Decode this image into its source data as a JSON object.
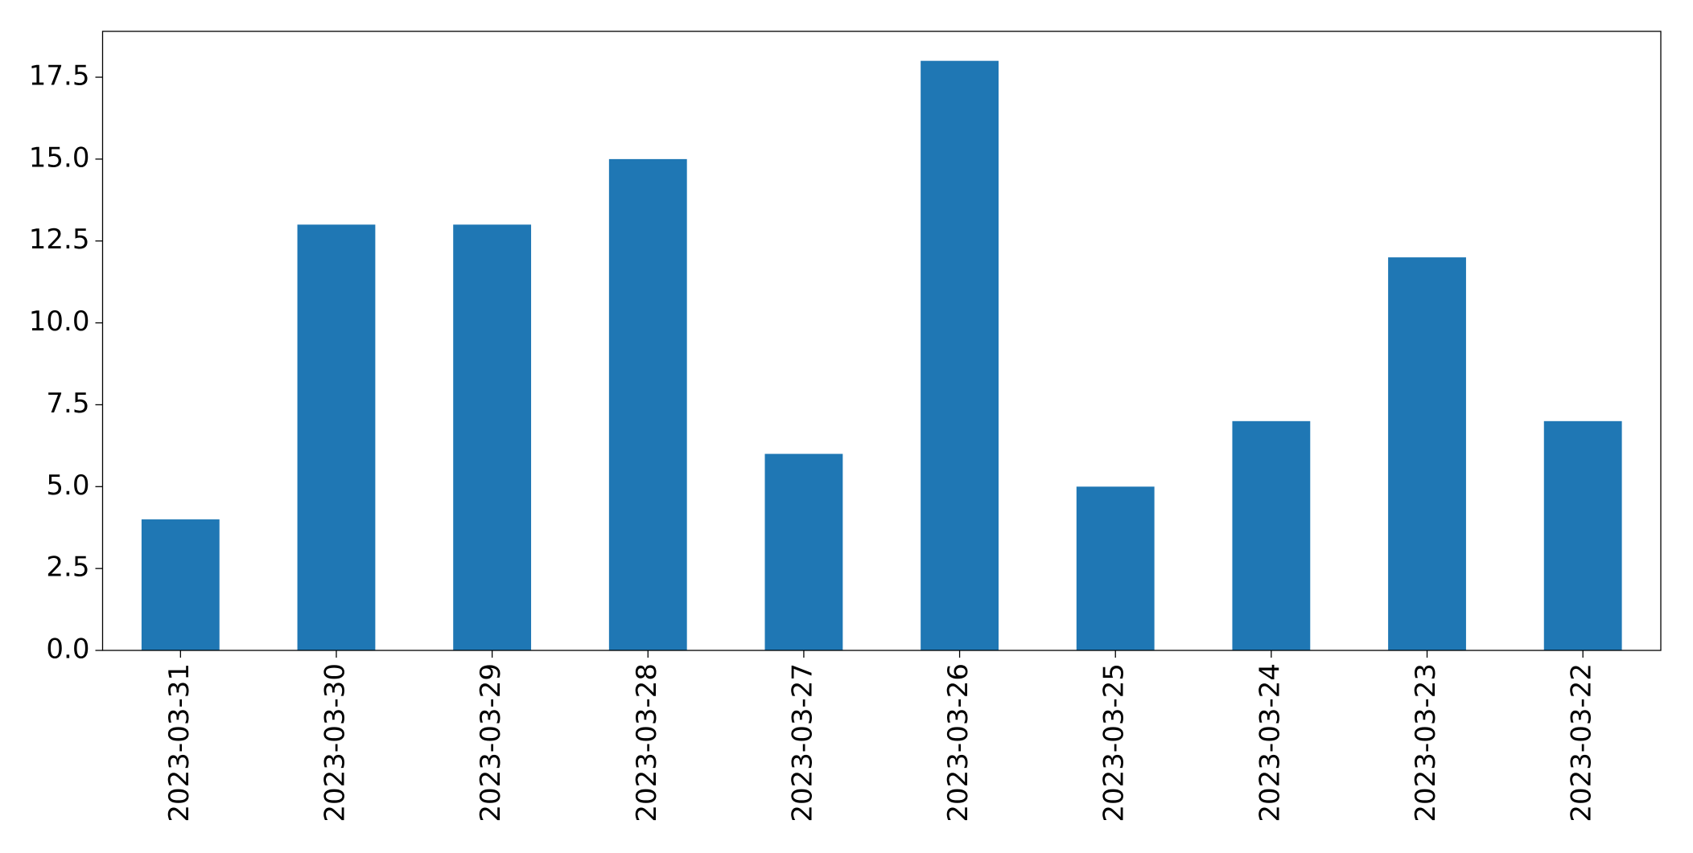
{
  "chart_data": {
    "type": "bar",
    "categories": [
      "2023-03-31",
      "2023-03-30",
      "2023-03-29",
      "2023-03-28",
      "2023-03-27",
      "2023-03-26",
      "2023-03-25",
      "2023-03-24",
      "2023-03-23",
      "2023-03-22"
    ],
    "values": [
      4,
      13,
      13,
      15,
      6,
      18,
      5,
      7,
      12,
      7
    ],
    "color": "#1f77b4",
    "ylim": [
      0,
      18.9
    ],
    "yticks": [
      {
        "value": 0,
        "label": "0.0"
      },
      2.5,
      {
        "value": 5,
        "label": "5.0"
      },
      7.5,
      {
        "value": 10,
        "label": "10.0"
      },
      12.5,
      {
        "value": 15,
        "label": "15.0"
      },
      17.5
    ],
    "grid": false
  }
}
